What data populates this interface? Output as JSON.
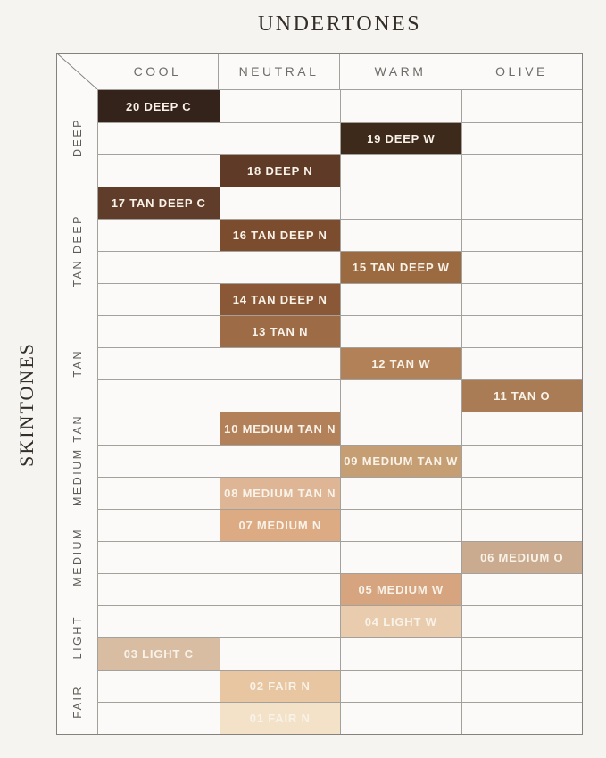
{
  "title": "UNDERTONES",
  "side_title": "SKINTONES",
  "ui_colors": {
    "bg": "#f5f4f1",
    "cell_bg": "#fbfaf8",
    "grid_line": "#a3a19c",
    "outer_line": "#85827d",
    "header_text": "#6e6c68",
    "group_text": "#5d5b57",
    "title_text": "#332e28",
    "swatch_text": "#f8f2e8"
  },
  "chart_data": {
    "type": "heatmap",
    "title": "UNDERTONES",
    "x_axis_label": "UNDERTONES",
    "y_axis_label": "SKINTONES",
    "x_categories": [
      "COOL",
      "NEUTRAL",
      "WARM",
      "OLIVE"
    ],
    "y_groups": [
      {
        "label": "DEEP",
        "row_count": 3
      },
      {
        "label": "TAN DEEP",
        "row_count": 4
      },
      {
        "label": "TAN",
        "row_count": 3
      },
      {
        "label": "MEDIUM TAN",
        "row_count": 3
      },
      {
        "label": "MEDIUM",
        "row_count": 3
      },
      {
        "label": "LIGHT",
        "row_count": 2
      },
      {
        "label": "FAIR",
        "row_count": 2
      }
    ],
    "rows": [
      {
        "shade": "20 DEEP C",
        "undertone": "COOL",
        "skintone": "DEEP",
        "col": 0,
        "color": "#33231b"
      },
      {
        "shade": "19 DEEP W",
        "undertone": "WARM",
        "skintone": "DEEP",
        "col": 2,
        "color": "#3e2a1b"
      },
      {
        "shade": "18 DEEP N",
        "undertone": "NEUTRAL",
        "skintone": "DEEP",
        "col": 1,
        "color": "#5f3a27"
      },
      {
        "shade": "17 TAN DEEP C",
        "undertone": "COOL",
        "skintone": "TAN DEEP",
        "col": 0,
        "color": "#603d2a"
      },
      {
        "shade": "16 TAN DEEP N",
        "undertone": "NEUTRAL",
        "skintone": "TAN DEEP",
        "col": 1,
        "color": "#7b4c2e"
      },
      {
        "shade": "15 TAN DEEP W",
        "undertone": "WARM",
        "skintone": "TAN DEEP",
        "col": 2,
        "color": "#9b6a40"
      },
      {
        "shade": "14 TAN DEEP N",
        "undertone": "NEUTRAL",
        "skintone": "TAN DEEP",
        "col": 1,
        "color": "#8a5836"
      },
      {
        "shade": "13 TAN N",
        "undertone": "NEUTRAL",
        "skintone": "TAN",
        "col": 1,
        "color": "#9d6c47"
      },
      {
        "shade": "12 TAN W",
        "undertone": "WARM",
        "skintone": "TAN",
        "col": 2,
        "color": "#b28157"
      },
      {
        "shade": "11 TAN O",
        "undertone": "OLIVE",
        "skintone": "TAN",
        "col": 3,
        "color": "#a97c55"
      },
      {
        "shade": "10 MEDIUM TAN N",
        "undertone": "NEUTRAL",
        "skintone": "MEDIUM TAN",
        "col": 1,
        "color": "#b2815a"
      },
      {
        "shade": "09 MEDIUM TAN W",
        "undertone": "WARM",
        "skintone": "MEDIUM TAN",
        "col": 2,
        "color": "#c69e74"
      },
      {
        "shade": "08 MEDIUM TAN N",
        "undertone": "NEUTRAL",
        "skintone": "MEDIUM TAN",
        "col": 1,
        "color": "#deb695"
      },
      {
        "shade": "07 MEDIUM N",
        "undertone": "NEUTRAL",
        "skintone": "MEDIUM",
        "col": 1,
        "color": "#dcaa83"
      },
      {
        "shade": "06 MEDIUM O",
        "undertone": "OLIVE",
        "skintone": "MEDIUM",
        "col": 3,
        "color": "#cbab8f"
      },
      {
        "shade": "05 MEDIUM W",
        "undertone": "WARM",
        "skintone": "MEDIUM",
        "col": 2,
        "color": "#d6a47f"
      },
      {
        "shade": "04 LIGHT W",
        "undertone": "WARM",
        "skintone": "LIGHT",
        "col": 2,
        "color": "#e9cbae"
      },
      {
        "shade": "03 LIGHT C",
        "undertone": "COOL",
        "skintone": "LIGHT",
        "col": 0,
        "color": "#d9bda2"
      },
      {
        "shade": "02 FAIR N",
        "undertone": "NEUTRAL",
        "skintone": "FAIR",
        "col": 1,
        "color": "#e8c6a1"
      },
      {
        "shade": "01 FAIR N",
        "undertone": "NEUTRAL",
        "skintone": "FAIR",
        "col": 1,
        "color": "#f3e1c8"
      }
    ]
  }
}
